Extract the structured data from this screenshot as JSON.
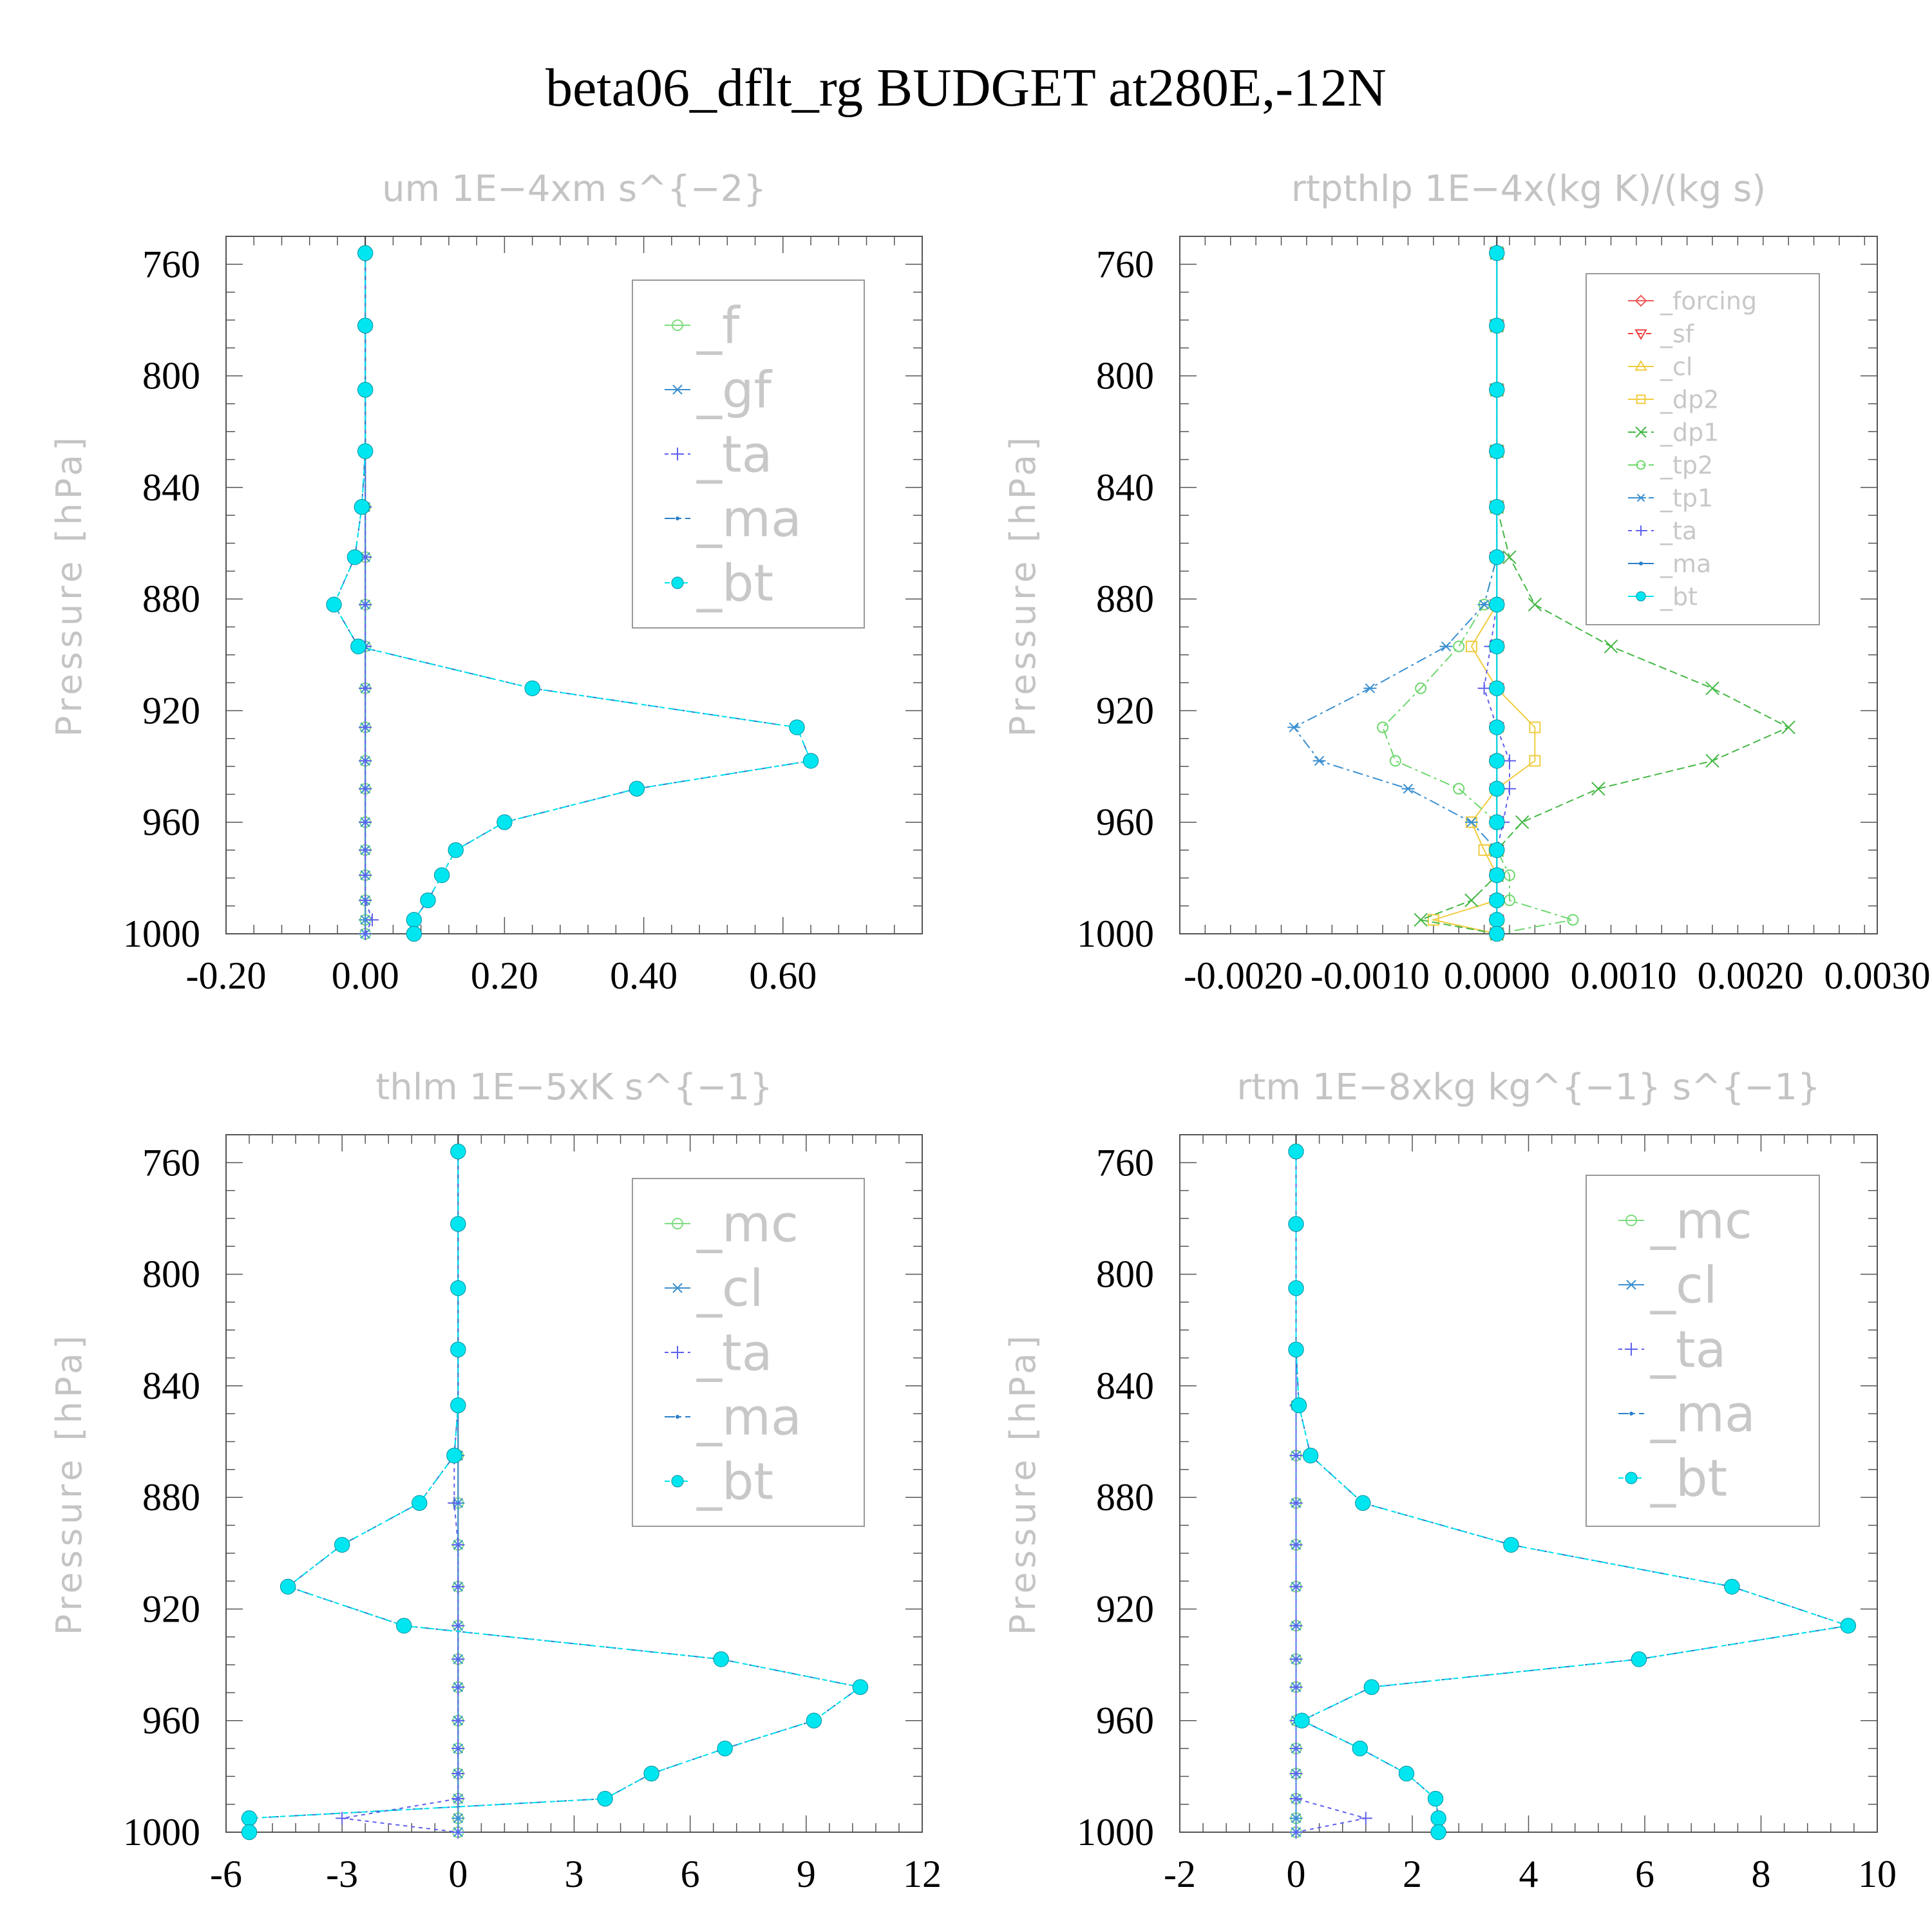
{
  "title": "beta06_dflt_rg  BUDGET at280E,-12N",
  "chart_data": [
    {
      "type": "line",
      "title": "um   1E−4xm s^{−2}",
      "ylabel": "Pressure [hPa]",
      "xlim": [
        -0.2,
        0.8
      ],
      "ylim": [
        1000,
        750
      ],
      "xticks": [
        "-0.20",
        "0.00",
        "0.20",
        "0.40",
        "0.60"
      ],
      "xtick_values": [
        -0.2,
        0.0,
        0.2,
        0.4,
        0.6
      ],
      "yticks": [
        "760",
        "800",
        "840",
        "880",
        "920",
        "960",
        "1000"
      ],
      "ytick_values": [
        760,
        800,
        840,
        880,
        920,
        960,
        1000
      ],
      "pressure": [
        756,
        782,
        805,
        827,
        847,
        865,
        882,
        897,
        912,
        926,
        938,
        948,
        960,
        970,
        979,
        988,
        995,
        1000
      ],
      "legend": {
        "position": "top-right",
        "large": true
      },
      "series": [
        {
          "name": "_f",
          "color": "#7fdc7f",
          "marker": "circle-open",
          "dash": "",
          "values": [
            0,
            0,
            0,
            0,
            0,
            0,
            0,
            0,
            0,
            0,
            0,
            0,
            0,
            0,
            0,
            0,
            0,
            0
          ]
        },
        {
          "name": "_gf",
          "color": "#3a8fd0",
          "marker": "asterisk",
          "dash": "",
          "values": [
            0,
            0,
            0,
            0,
            0,
            0,
            0,
            0,
            0,
            0,
            0,
            0,
            0,
            0,
            0,
            0,
            0,
            0
          ]
        },
        {
          "name": "_ta",
          "color": "#6060ee",
          "marker": "plus",
          "dash": "6,6",
          "values": [
            0,
            0,
            0,
            0,
            0,
            0,
            0,
            0,
            0,
            0,
            0,
            0,
            0,
            0,
            0,
            0,
            0.01,
            0.0
          ]
        },
        {
          "name": "_ma",
          "color": "#2a7fc8",
          "marker": "dot",
          "dash": "16,6,4,6",
          "values": [
            0,
            0,
            0,
            0,
            -0.005,
            -0.015,
            -0.045,
            -0.01,
            0.24,
            0.62,
            0.64,
            0.39,
            0.2,
            0.13,
            0.11,
            0.09,
            0.07,
            0.07
          ]
        },
        {
          "name": "_bt",
          "color": "#00e6f0",
          "marker": "disc",
          "dash": "8,6",
          "values": [
            0,
            0,
            0,
            0,
            -0.005,
            -0.015,
            -0.045,
            -0.01,
            0.24,
            0.62,
            0.64,
            0.39,
            0.2,
            0.13,
            0.11,
            0.09,
            0.07,
            0.07
          ]
        }
      ]
    },
    {
      "type": "line",
      "title": "rtpthlp   1E−4x(kg K)/(kg s)",
      "ylabel": "Pressure [hPa]",
      "xlim": [
        -0.0025,
        0.003
      ],
      "ylim": [
        1000,
        750
      ],
      "xticks": [
        "-0.0020",
        "-0.0010",
        "0.0000",
        "0.0010",
        "0.0020",
        "0.0030"
      ],
      "xtick_values": [
        -0.002,
        -0.001,
        0.0,
        0.001,
        0.002,
        0.003
      ],
      "yticks": [
        "760",
        "800",
        "840",
        "880",
        "920",
        "960",
        "1000"
      ],
      "ytick_values": [
        760,
        800,
        840,
        880,
        920,
        960,
        1000
      ],
      "pressure": [
        756,
        782,
        805,
        827,
        847,
        865,
        882,
        897,
        912,
        926,
        938,
        948,
        960,
        970,
        979,
        988,
        995,
        1000
      ],
      "legend": {
        "position": "top-right",
        "large": false
      },
      "series": [
        {
          "name": "_forcing",
          "color": "#ee5a5a",
          "marker": "diamond",
          "dash": "",
          "values": [
            0,
            0,
            0,
            0,
            0,
            0,
            0,
            0,
            0,
            0,
            0,
            0,
            0,
            0,
            0,
            0,
            0,
            0
          ]
        },
        {
          "name": "_sf",
          "color": "#ee4040",
          "marker": "triangle-down",
          "dash": "8,6",
          "values": [
            0,
            0,
            0,
            0,
            0,
            0,
            0,
            0,
            0,
            0,
            0,
            0,
            0,
            0,
            0,
            0,
            0,
            0
          ]
        },
        {
          "name": "_cl",
          "color": "#f0cc40",
          "marker": "triangle-up",
          "dash": "",
          "values": [
            0,
            0,
            0,
            0,
            0,
            0,
            0,
            0,
            0,
            0,
            0,
            0,
            0,
            0,
            0,
            0,
            0,
            0
          ]
        },
        {
          "name": "_dp2",
          "color": "#f0cc40",
          "marker": "square-open",
          "dash": "",
          "values": [
            0,
            0,
            0,
            0,
            0,
            0,
            0,
            -0.0002,
            0,
            0.0003,
            0.0003,
            0,
            -0.0002,
            -0.0001,
            0,
            0,
            -0.0005,
            0
          ]
        },
        {
          "name": "_dp1",
          "color": "#44b844",
          "marker": "x",
          "dash": "12,6",
          "values": [
            0,
            0,
            0,
            0,
            0,
            0.0001,
            0.0003,
            0.0009,
            0.0017,
            0.0023,
            0.0017,
            0.0008,
            0.0002,
            0,
            0,
            -0.0002,
            -0.0006,
            0
          ]
        },
        {
          "name": "_tp2",
          "color": "#6ed86e",
          "marker": "circle-open",
          "dash": "16,6,4,6",
          "values": [
            0,
            0,
            0,
            0,
            0,
            0,
            -0.0001,
            -0.0003,
            -0.0006,
            -0.0009,
            -0.0008,
            -0.0003,
            0,
            0,
            0.0001,
            0.0001,
            0.0006,
            0
          ]
        },
        {
          "name": "_tp1",
          "color": "#3a8fd0",
          "marker": "asterisk",
          "dash": "16,6,4,6",
          "values": [
            0,
            0,
            0,
            0,
            0,
            0,
            -0.0001,
            -0.0004,
            -0.001,
            -0.0016,
            -0.0014,
            -0.0007,
            -0.0002,
            0,
            0,
            0,
            0,
            0
          ]
        },
        {
          "name": "_ta",
          "color": "#6060ee",
          "marker": "plus",
          "dash": "6,6",
          "values": [
            0,
            0,
            0,
            0,
            0,
            0,
            0,
            -5e-05,
            -0.0001,
            0,
            0.0001,
            0.0001,
            5e-05,
            0,
            0,
            0,
            0,
            0
          ]
        },
        {
          "name": "_ma",
          "color": "#2a7fc8",
          "marker": "dot",
          "dash": "",
          "values": [
            0,
            0,
            0,
            0,
            0,
            0,
            0,
            0,
            0,
            0,
            0,
            0,
            0,
            0,
            0,
            0,
            0,
            0
          ]
        },
        {
          "name": "_bt",
          "color": "#00e6f0",
          "marker": "disc",
          "dash": "",
          "values": [
            0,
            0,
            0,
            0,
            0,
            0,
            0,
            0,
            0,
            0,
            0,
            0,
            0,
            0,
            0,
            0,
            0,
            0
          ]
        }
      ]
    },
    {
      "type": "line",
      "title": "thlm   1E−5xK s^{−1}",
      "ylabel": "Pressure [hPa]",
      "xlim": [
        -6,
        12
      ],
      "ylim": [
        1000,
        750
      ],
      "xticks": [
        "-6",
        "-3",
        "0",
        "3",
        "6",
        "9",
        "12"
      ],
      "xtick_values": [
        -6,
        -3,
        0,
        3,
        6,
        9,
        12
      ],
      "yticks": [
        "760",
        "800",
        "840",
        "880",
        "920",
        "960",
        "1000"
      ],
      "ytick_values": [
        760,
        800,
        840,
        880,
        920,
        960,
        1000
      ],
      "pressure": [
        756,
        782,
        805,
        827,
        847,
        865,
        882,
        897,
        912,
        926,
        938,
        948,
        960,
        970,
        979,
        988,
        995,
        1000
      ],
      "legend": {
        "position": "top-right",
        "large": true
      },
      "series": [
        {
          "name": "_mc",
          "color": "#7fdc7f",
          "marker": "circle-open",
          "dash": "",
          "values": [
            0,
            0,
            0,
            0,
            0,
            0,
            0,
            0,
            0,
            0,
            0,
            0,
            0,
            0,
            0,
            0,
            0,
            0
          ]
        },
        {
          "name": "_cl",
          "color": "#3a8fd0",
          "marker": "asterisk",
          "dash": "",
          "values": [
            0,
            0,
            0,
            0,
            0,
            0,
            0,
            0,
            0,
            0,
            0,
            0,
            0,
            0,
            0,
            0,
            0,
            0
          ]
        },
        {
          "name": "_ta",
          "color": "#6060ee",
          "marker": "plus",
          "dash": "6,6",
          "values": [
            0,
            0,
            0,
            0,
            0,
            -0.1,
            -0.1,
            0,
            0,
            0,
            0,
            0,
            0,
            0,
            0,
            0,
            -3.0,
            0
          ]
        },
        {
          "name": "_ma",
          "color": "#2a7fc8",
          "marker": "dot",
          "dash": "16,6,4,6",
          "values": [
            0,
            0,
            0,
            0,
            0,
            -0.1,
            -1.0,
            -3.0,
            -4.4,
            -1.4,
            6.8,
            10.4,
            9.2,
            6.9,
            5.0,
            3.8,
            -5.4,
            -5.4
          ]
        },
        {
          "name": "_bt",
          "color": "#00e6f0",
          "marker": "disc",
          "dash": "8,6",
          "values": [
            0,
            0,
            0,
            0,
            0,
            -0.1,
            -1.0,
            -3.0,
            -4.4,
            -1.4,
            6.8,
            10.4,
            9.2,
            6.9,
            5.0,
            3.8,
            -5.4,
            -5.4
          ]
        }
      ]
    },
    {
      "type": "line",
      "title": "rtm   1E−8xkg kg^{−1} s^{−1}",
      "ylabel": "Pressure [hPa]",
      "xlim": [
        -2,
        10
      ],
      "ylim": [
        1000,
        750
      ],
      "xticks": [
        "-2",
        "0",
        "2",
        "4",
        "6",
        "8",
        "10"
      ],
      "xtick_values": [
        -2,
        0,
        2,
        4,
        6,
        8,
        10
      ],
      "yticks": [
        "760",
        "800",
        "840",
        "880",
        "920",
        "960",
        "1000"
      ],
      "ytick_values": [
        760,
        800,
        840,
        880,
        920,
        960,
        1000
      ],
      "pressure": [
        756,
        782,
        805,
        827,
        847,
        865,
        882,
        897,
        912,
        926,
        938,
        948,
        960,
        970,
        979,
        988,
        995,
        1000
      ],
      "legend": {
        "position": "top-right",
        "large": true
      },
      "series": [
        {
          "name": "_mc",
          "color": "#7fdc7f",
          "marker": "circle-open",
          "dash": "",
          "values": [
            0,
            0,
            0,
            0,
            0,
            0,
            0,
            0,
            0,
            0,
            0,
            0,
            0,
            0,
            0,
            0,
            0,
            0
          ]
        },
        {
          "name": "_cl",
          "color": "#3a8fd0",
          "marker": "asterisk",
          "dash": "",
          "values": [
            0,
            0,
            0,
            0,
            0,
            0,
            0,
            0,
            0,
            0,
            0,
            0,
            0,
            0,
            0,
            0,
            0,
            0
          ]
        },
        {
          "name": "_ta",
          "color": "#6060ee",
          "marker": "plus",
          "dash": "6,6",
          "values": [
            0,
            0,
            0,
            0,
            0,
            0,
            0,
            0,
            0,
            0,
            0,
            0,
            0,
            0,
            0,
            0,
            1.2,
            0
          ]
        },
        {
          "name": "_ma",
          "color": "#2a7fc8",
          "marker": "dot",
          "dash": "16,6,4,6",
          "values": [
            0,
            0,
            0,
            0,
            0.05,
            0.25,
            1.15,
            3.7,
            7.5,
            9.5,
            5.9,
            1.3,
            0.1,
            1.1,
            1.9,
            2.4,
            2.45,
            2.45
          ]
        },
        {
          "name": "_bt",
          "color": "#00e6f0",
          "marker": "disc",
          "dash": "8,6",
          "values": [
            0,
            0,
            0,
            0,
            0.05,
            0.25,
            1.15,
            3.7,
            7.5,
            9.5,
            5.9,
            1.3,
            0.1,
            1.1,
            1.9,
            2.4,
            2.45,
            2.45
          ]
        }
      ]
    }
  ]
}
